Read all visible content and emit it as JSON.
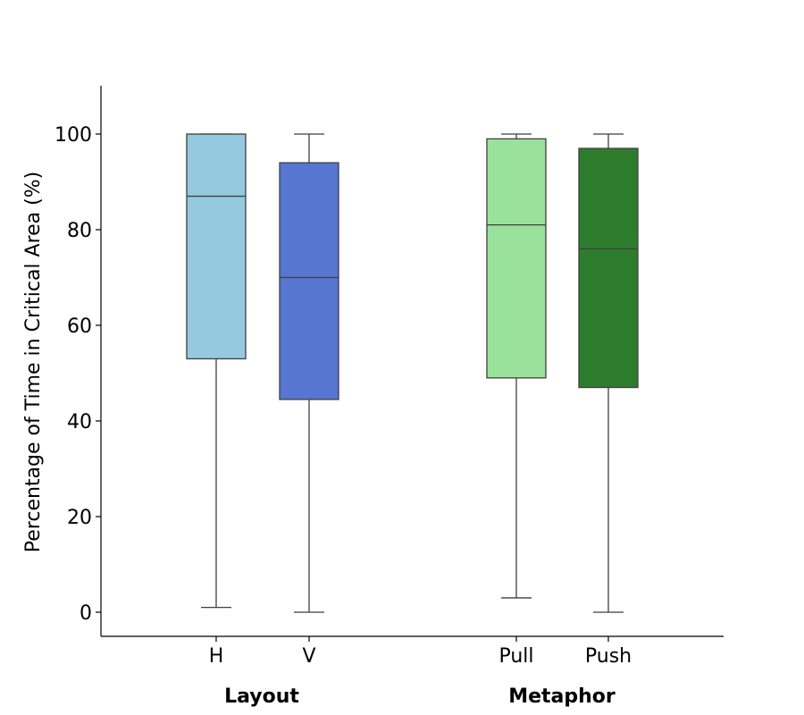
{
  "chart_data": {
    "type": "box",
    "ylabel": "Percentage of Time in Critical Area (%)",
    "ylim": [
      -5,
      110
    ],
    "yticks": [
      0,
      20,
      40,
      60,
      80,
      100
    ],
    "grid": false,
    "groups": [
      {
        "label": "Layout",
        "categories": [
          "H",
          "V"
        ]
      },
      {
        "label": "Metaphor",
        "categories": [
          "Pull",
          "Push"
        ]
      }
    ],
    "series": [
      {
        "category": "H",
        "color": "#95c9de",
        "min": 1,
        "q1": 53,
        "median": 87,
        "q3": 100,
        "max": 100
      },
      {
        "category": "V",
        "color": "#5676d1",
        "min": 0,
        "q1": 44.5,
        "median": 70,
        "q3": 94,
        "max": 100
      },
      {
        "category": "Pull",
        "color": "#9ae29b",
        "min": 3,
        "q1": 49,
        "median": 81,
        "q3": 99,
        "max": 100
      },
      {
        "category": "Push",
        "color": "#2e7d2e",
        "min": 0,
        "q1": 47,
        "median": 76,
        "q3": 97,
        "max": 100
      }
    ]
  }
}
